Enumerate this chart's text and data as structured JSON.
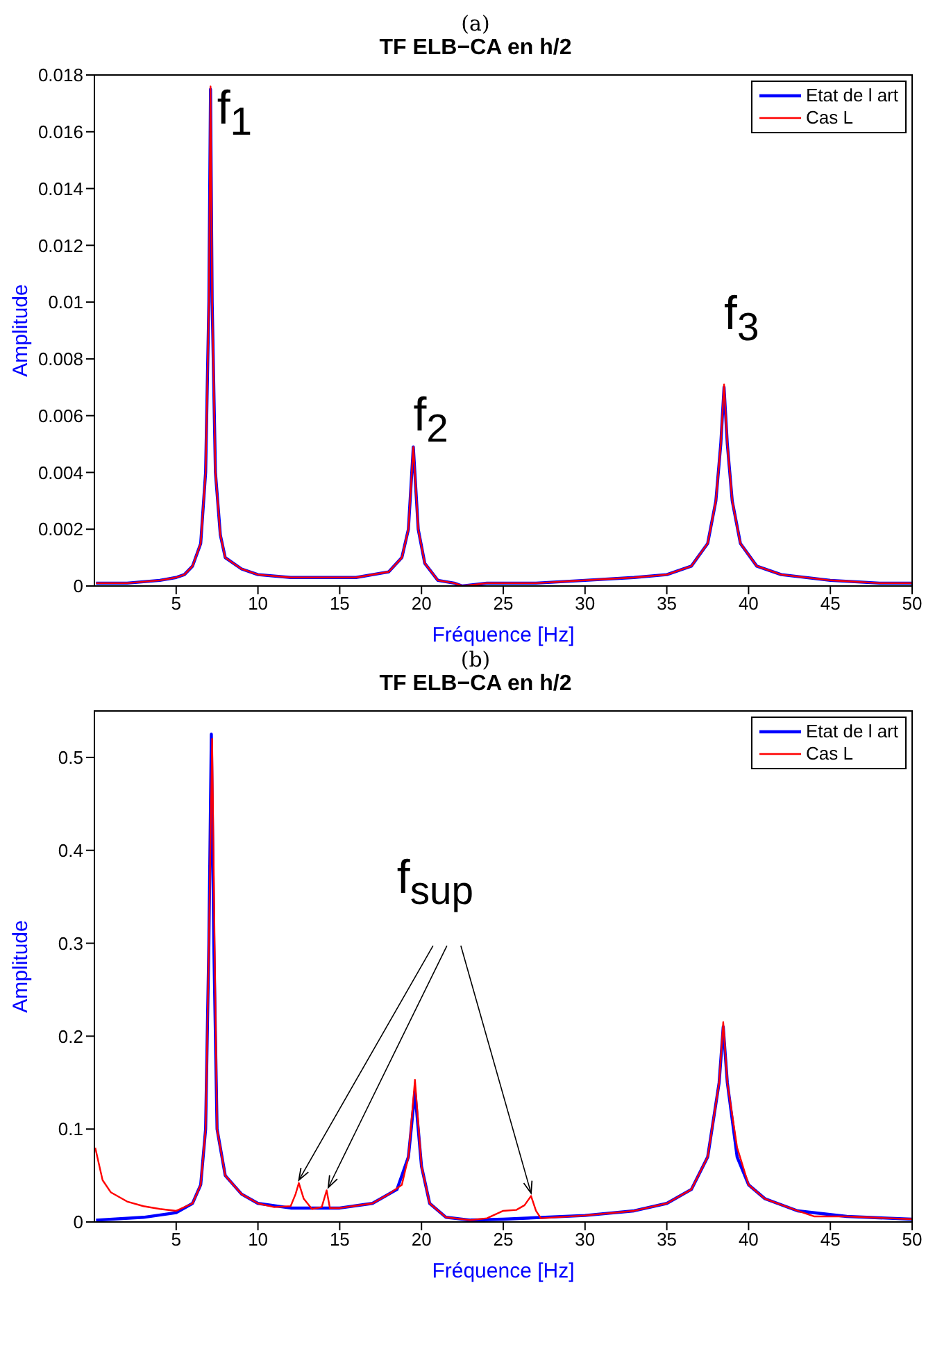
{
  "chart_data": [
    {
      "type": "line",
      "title": "TF ELB−CA en h/2",
      "xlabel": "Fréquence [Hz]",
      "ylabel": "Amplitude",
      "xlim": [
        0,
        50
      ],
      "xticks": [
        5,
        10,
        15,
        20,
        25,
        30,
        35,
        40,
        45,
        50
      ],
      "ylim": [
        0,
        0.018
      ],
      "yticks": [
        0,
        0.002,
        0.004,
        0.006,
        0.008,
        0.01,
        0.012,
        0.014,
        0.016,
        0.018
      ],
      "legend": "top right",
      "marker": "none",
      "line_style": "solid",
      "annotations": [
        "(a)",
        "f$_{1}$",
        "f$_{2}$",
        "f$_{3}$"
      ],
      "series": [
        {
          "name": "Etat de l art",
          "color": "#0000ff",
          "x": [
            0.1,
            2,
            4,
            5,
            5.5,
            6,
            6.5,
            6.8,
            7.0,
            7.1,
            7.2,
            7.4,
            7.7,
            8,
            9,
            10,
            12,
            14,
            16,
            18,
            18.8,
            19.2,
            19.5,
            19.8,
            20.2,
            21,
            22,
            22.5,
            24,
            27,
            30,
            33,
            35,
            36.5,
            37.5,
            38,
            38.3,
            38.5,
            38.7,
            39,
            39.5,
            40.5,
            42,
            45,
            48,
            50
          ],
          "values": [
            0.0001,
            0.0001,
            0.0002,
            0.0003,
            0.0004,
            0.0007,
            0.0015,
            0.004,
            0.01,
            0.0175,
            0.01,
            0.004,
            0.0018,
            0.001,
            0.0006,
            0.0004,
            0.0003,
            0.0003,
            0.0003,
            0.0005,
            0.001,
            0.002,
            0.0049,
            0.002,
            0.0008,
            0.0002,
            0.0001,
            0,
            0.0001,
            0.0001,
            0.0002,
            0.0003,
            0.0004,
            0.0007,
            0.0015,
            0.003,
            0.005,
            0.007,
            0.005,
            0.003,
            0.0015,
            0.0007,
            0.0004,
            0.0002,
            0.0001,
            0.0001
          ]
        },
        {
          "name": "Cas L",
          "color": "#ff0000",
          "x": [
            0.1,
            2,
            4,
            5,
            5.5,
            6,
            6.5,
            6.8,
            7.0,
            7.1,
            7.2,
            7.4,
            7.7,
            8,
            9,
            10,
            12,
            14,
            16,
            18,
            18.8,
            19.2,
            19.5,
            19.8,
            20.2,
            21,
            22,
            22.5,
            24,
            27,
            30,
            33,
            35,
            36.5,
            37.5,
            38,
            38.3,
            38.5,
            38.7,
            39,
            39.5,
            40.5,
            42,
            45,
            48,
            50
          ],
          "values": [
            0.0001,
            0.0001,
            0.0002,
            0.0003,
            0.0004,
            0.0007,
            0.0015,
            0.004,
            0.01,
            0.0176,
            0.01,
            0.004,
            0.0018,
            0.001,
            0.0006,
            0.0004,
            0.0003,
            0.0003,
            0.0003,
            0.0005,
            0.001,
            0.002,
            0.0049,
            0.002,
            0.0008,
            0.0002,
            0.0001,
            0,
            0.0001,
            0.0001,
            0.0002,
            0.0003,
            0.0004,
            0.0007,
            0.0015,
            0.003,
            0.005,
            0.0071,
            0.005,
            0.003,
            0.0015,
            0.0007,
            0.0004,
            0.0002,
            0.0001,
            0.0001
          ]
        }
      ]
    },
    {
      "type": "line",
      "title": "TF ELB−CA en h/2",
      "xlabel": "Fréquence [Hz]",
      "ylabel": "Amplitude",
      "xlim": [
        0,
        50
      ],
      "xticks": [
        5,
        10,
        15,
        20,
        25,
        30,
        35,
        40,
        45,
        50
      ],
      "ylim": [
        0,
        0.55
      ],
      "yticks": [
        0,
        0.1,
        0.2,
        0.3,
        0.4,
        0.5
      ],
      "legend": "top right",
      "marker": "none",
      "line_style": "solid",
      "annotations": [
        "(b)",
        {
          "text": "f$_{sup}$",
          "x": 12.5,
          "y": 0.045
        }
      ],
      "series": [
        {
          "name": "Etat de l art",
          "color": "#0000ff",
          "x": [
            0.1,
            3,
            5,
            6,
            6.5,
            6.8,
            7.0,
            7.15,
            7.3,
            7.5,
            8,
            9,
            10,
            12,
            15,
            17,
            18.5,
            19.2,
            19.6,
            20,
            20.5,
            21.5,
            23,
            25,
            30,
            33,
            35,
            36.5,
            37.5,
            38.2,
            38.45,
            38.7,
            39.3,
            40,
            41,
            43,
            46,
            50
          ],
          "values": [
            0.002,
            0.005,
            0.01,
            0.02,
            0.04,
            0.1,
            0.3,
            0.525,
            0.3,
            0.1,
            0.05,
            0.03,
            0.02,
            0.015,
            0.015,
            0.02,
            0.035,
            0.07,
            0.14,
            0.06,
            0.02,
            0.005,
            0.002,
            0.003,
            0.007,
            0.012,
            0.02,
            0.035,
            0.07,
            0.15,
            0.21,
            0.15,
            0.07,
            0.04,
            0.025,
            0.012,
            0.006,
            0.003
          ]
        },
        {
          "name": "Cas L",
          "color": "#ff0000",
          "x": [
            0.05,
            0.5,
            1,
            2,
            3,
            4,
            5,
            6,
            6.5,
            6.8,
            7.0,
            7.2,
            7.35,
            7.5,
            8,
            9,
            10,
            11,
            12,
            12.3,
            12.5,
            12.8,
            13.3,
            13.9,
            14.2,
            14.4,
            15,
            17,
            18,
            18.8,
            19.2,
            19.6,
            20,
            20.5,
            21.5,
            23,
            24,
            25,
            25.8,
            26.3,
            26.7,
            27,
            27.3,
            30,
            33,
            35,
            36.5,
            37.5,
            38.2,
            38.45,
            38.7,
            39.3,
            40,
            41,
            43,
            44,
            46,
            50
          ],
          "values": [
            0.08,
            0.045,
            0.032,
            0.022,
            0.017,
            0.014,
            0.012,
            0.02,
            0.04,
            0.1,
            0.3,
            0.52,
            0.3,
            0.1,
            0.05,
            0.03,
            0.02,
            0.016,
            0.017,
            0.03,
            0.042,
            0.025,
            0.014,
            0.016,
            0.034,
            0.015,
            0.015,
            0.02,
            0.03,
            0.04,
            0.07,
            0.153,
            0.06,
            0.02,
            0.005,
            0.002,
            0.004,
            0.012,
            0.013,
            0.018,
            0.028,
            0.012,
            0.004,
            0.007,
            0.012,
            0.02,
            0.035,
            0.07,
            0.15,
            0.215,
            0.15,
            0.08,
            0.04,
            0.025,
            0.012,
            0.006,
            0.006,
            0.003
          ]
        }
      ]
    }
  ]
}
